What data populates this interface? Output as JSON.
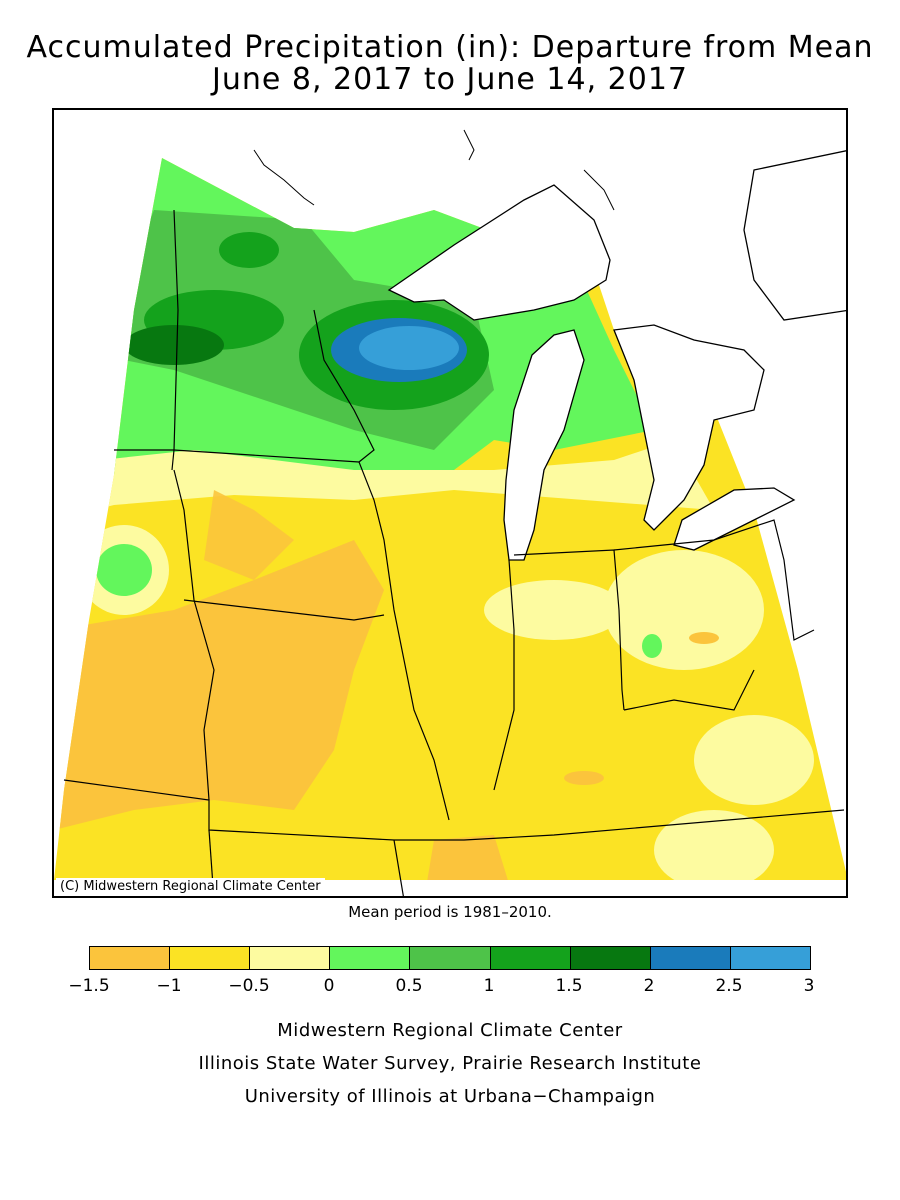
{
  "title": {
    "line1": "Accumulated Precipitation (in): Departure from Mean",
    "line2": "June 8, 2017 to June 14, 2017"
  },
  "map": {
    "credit": "(C) Midwestern Regional Climate Center",
    "mean_period": "Mean period is 1981–2010."
  },
  "legend": {
    "ticks": [
      "−1.5",
      "−1",
      "−0.5",
      "0",
      "0.5",
      "1",
      "1.5",
      "2",
      "2.5",
      "3"
    ],
    "bins": [
      {
        "from": -1.5,
        "to": -1,
        "color": "#fbc43c"
      },
      {
        "from": -1,
        "to": -0.5,
        "color": "#fbe324"
      },
      {
        "from": -0.5,
        "to": 0,
        "color": "#fdfba0"
      },
      {
        "from": 0,
        "to": 0.5,
        "color": "#63f65c"
      },
      {
        "from": 0.5,
        "to": 1,
        "color": "#4ec349"
      },
      {
        "from": 1,
        "to": 1.5,
        "color": "#14a21c"
      },
      {
        "from": 1.5,
        "to": 2,
        "color": "#077810"
      },
      {
        "from": 2,
        "to": 2.5,
        "color": "#1a7bbb"
      },
      {
        "from": 2.5,
        "to": 3,
        "color": "#369fd8"
      }
    ]
  },
  "footer": {
    "line1": "Midwestern Regional Climate Center",
    "line2": "Illinois State Water Survey, Prairie Research Institute",
    "line3": "University of Illinois at Urbana−Champaign"
  }
}
